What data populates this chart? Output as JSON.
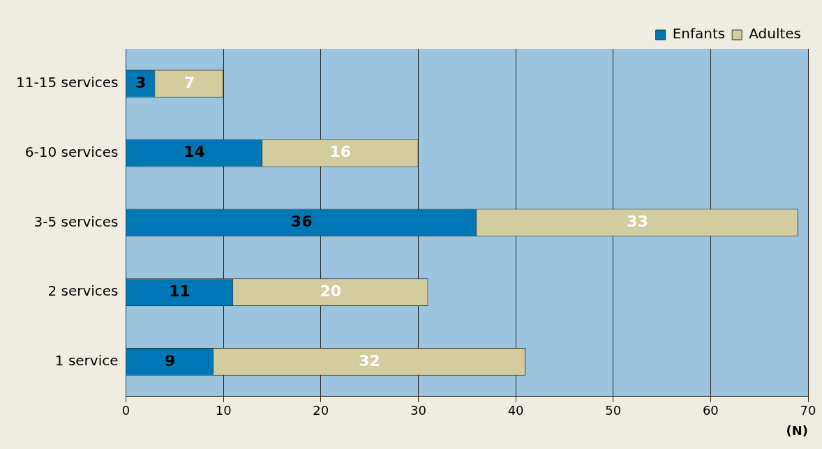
{
  "chart_data": {
    "type": "bar",
    "orientation": "horizontal",
    "stacked": true,
    "categories": [
      "11-15 services",
      "6-10 services",
      "3-5 services",
      "2 services",
      "1 service"
    ],
    "series": [
      {
        "name": "Enfants",
        "color": "#0077b5",
        "values": [
          3,
          14,
          36,
          11,
          9
        ]
      },
      {
        "name": "Adultes",
        "color": "#d3cc9e",
        "values": [
          7,
          16,
          33,
          20,
          32
        ]
      }
    ],
    "xlabel": "(N)",
    "xlim": [
      0,
      70
    ],
    "xticks": [
      0,
      10,
      20,
      30,
      40,
      50,
      60,
      70
    ],
    "grid": "x",
    "legend": "top right",
    "data_labels": true
  }
}
